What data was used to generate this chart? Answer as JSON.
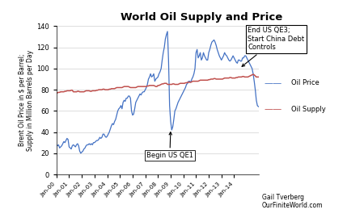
{
  "title": "World Oil Supply and Price",
  "ylabel": "Brent Oil Price in $ per Barrel;\nSupply in Million Barrels per Day",
  "ylim": [
    0,
    140
  ],
  "yticks": [
    0,
    20,
    40,
    60,
    80,
    100,
    120,
    140
  ],
  "bg_color": "#ffffff",
  "oil_price_color": "#4472C4",
  "oil_supply_color": "#C0504D",
  "annotation1_text": "Begin US QE1",
  "annotation2_text": "End US QE3;\nStart China Debt\nControls",
  "credit_text": "Gail Tverberg\nOurFiniteWorld.com",
  "oil_price_data": [
    28,
    27,
    28,
    25,
    26,
    27,
    29,
    31,
    30,
    32,
    34,
    33,
    26,
    25,
    24,
    27,
    28,
    27,
    26,
    28,
    29,
    27,
    22,
    20,
    21,
    22,
    24,
    25,
    27,
    28,
    28,
    29,
    28,
    29,
    28,
    30,
    30,
    31,
    32,
    32,
    33,
    35,
    34,
    35,
    38,
    38,
    36,
    35,
    36,
    38,
    40,
    43,
    46,
    48,
    47,
    50,
    52,
    56,
    60,
    62,
    63,
    65,
    62,
    68,
    70,
    69,
    72,
    72,
    74,
    74,
    72,
    60,
    56,
    57,
    62,
    68,
    70,
    72,
    74,
    76,
    75,
    77,
    78,
    78,
    80,
    82,
    85,
    90,
    92,
    95,
    92,
    93,
    95,
    88,
    90,
    91,
    92,
    95,
    97,
    100,
    108,
    115,
    120,
    128,
    132,
    135,
    108,
    65,
    50,
    42,
    45,
    52,
    60,
    62,
    65,
    68,
    70,
    72,
    74,
    76,
    78,
    80,
    82,
    85,
    86,
    88,
    88,
    87,
    90,
    92,
    95,
    100,
    115,
    118,
    110,
    112,
    115,
    108,
    110,
    115,
    112,
    110,
    108,
    108,
    115,
    118,
    122,
    125,
    126,
    127,
    125,
    122,
    118,
    115,
    112,
    110,
    108,
    110,
    112,
    115,
    113,
    112,
    110,
    108,
    107,
    108,
    110,
    112,
    110,
    108,
    106,
    105,
    108,
    108,
    107,
    107,
    110,
    110,
    112,
    112,
    110,
    108,
    106,
    104,
    102,
    100,
    95,
    88,
    80,
    70,
    65,
    64
  ],
  "oil_supply_data": [
    77,
    77,
    77.5,
    77.5,
    78,
    78,
    78,
    78,
    78.5,
    78.5,
    79,
    79,
    79,
    79,
    79.5,
    79.5,
    78,
    78,
    78,
    78,
    78.5,
    78.5,
    78,
    78,
    78,
    78,
    78,
    78.5,
    79,
    79,
    79,
    79,
    78.5,
    78.5,
    79,
    79,
    79,
    79,
    79.5,
    79.5,
    80,
    80,
    80,
    80,
    80.5,
    80.5,
    80,
    80,
    80,
    80,
    80.5,
    80.5,
    81,
    81,
    81,
    81,
    81.5,
    82,
    82,
    82,
    82,
    82,
    82,
    82.5,
    83,
    83,
    83,
    83,
    83,
    82.5,
    82,
    82,
    82,
    82,
    82,
    82,
    82.5,
    83,
    83,
    83,
    83,
    83,
    83,
    83,
    83,
    83,
    83.5,
    83.5,
    84,
    84,
    84,
    84,
    84,
    83.5,
    83,
    83,
    84,
    84,
    84.5,
    85,
    85.5,
    85.5,
    86,
    86,
    86,
    85,
    85,
    85,
    85,
    85,
    85.5,
    85.5,
    85,
    85,
    85,
    85,
    85.5,
    86,
    86,
    86,
    86,
    86,
    86.5,
    86.5,
    87,
    87,
    87,
    87,
    87.5,
    88,
    88,
    88,
    88,
    88,
    88,
    88.5,
    89,
    89,
    89,
    89,
    89,
    89,
    89,
    89,
    89.5,
    89.5,
    90,
    90,
    90,
    90.5,
    90.5,
    90,
    90,
    90,
    90,
    90,
    90,
    90,
    90.5,
    91,
    91,
    91,
    91,
    91,
    91.5,
    91.5,
    91,
    91,
    91,
    91,
    91.5,
    91.5,
    92,
    92,
    92,
    92,
    92.5,
    92.5,
    92,
    92,
    92,
    92,
    92.5,
    93,
    93.5,
    94,
    94.5,
    94,
    93,
    92,
    92,
    92
  ],
  "xtick_labels": [
    "Jan-00",
    "Jan-01",
    "Jan-02",
    "Jan-03",
    "Jan-04",
    "Jan-05",
    "Jan-06",
    "Jan-07",
    "Jan-08",
    "Jan-09",
    "Jan-10",
    "Jan-11",
    "Jan-12",
    "Jan-13",
    "Jan-14"
  ],
  "xtick_positions": [
    0,
    12,
    24,
    36,
    48,
    60,
    72,
    84,
    96,
    108,
    120,
    132,
    144,
    156,
    168
  ]
}
